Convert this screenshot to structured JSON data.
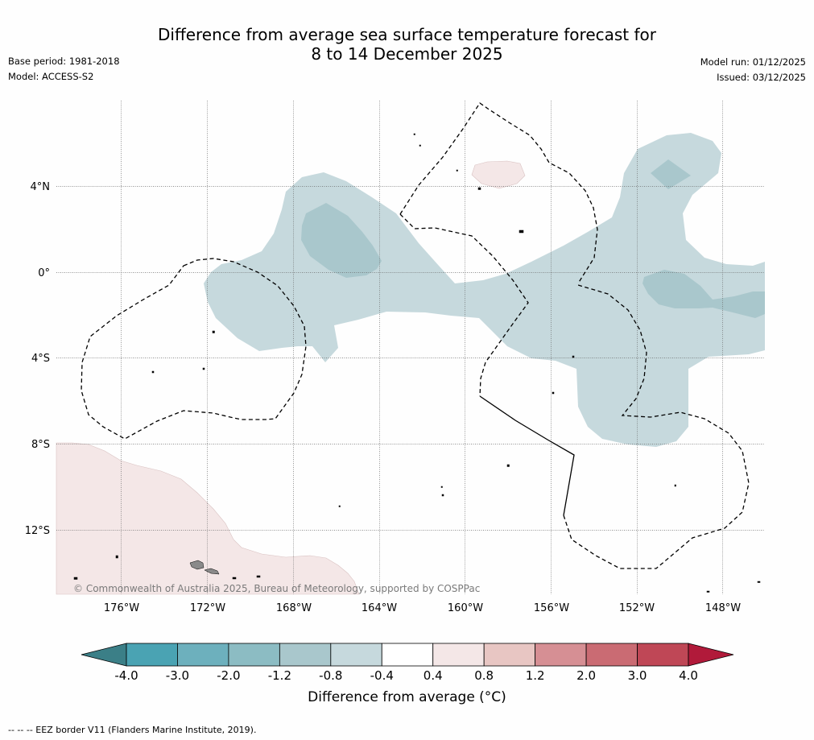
{
  "header": {
    "title_line1": "Difference from average sea surface temperature forecast for",
    "title_line2": "8 to 14 December 2025",
    "base_period": "Base period: 1981-2018",
    "model": "Model: ACCESS-S2",
    "model_run": "Model run: 01/12/2025",
    "issued": "Issued: 03/12/2025"
  },
  "map": {
    "lat_labels": [
      "4°N",
      "0°",
      "4°S",
      "8°S",
      "12°S"
    ],
    "lon_labels": [
      "176°W",
      "172°W",
      "168°W",
      "164°W",
      "160°W",
      "156°W",
      "152°W",
      "148°W"
    ],
    "copyright": "© Commonwealth of Australia 2025, Bureau of Meteorology, supported by COSPPac",
    "anomaly_regions": [
      {
        "name": "central-equatorial-cool-band",
        "range": "-0.8 to -0.4"
      },
      {
        "name": "western-cool-core",
        "range": "-1.2 to -0.8"
      },
      {
        "name": "eastern-cool-core",
        "range": "-1.2 to -0.8"
      },
      {
        "name": "northeast-cool-core",
        "range": "-1.2 to -0.8"
      },
      {
        "name": "north-warm-patch",
        "range": "0.4 to 0.8"
      },
      {
        "name": "southwest-warm-region",
        "range": "0.4 to 0.8"
      }
    ]
  },
  "colorbar": {
    "ticks": [
      "-4.0",
      "-3.0",
      "-2.0",
      "-1.2",
      "-0.8",
      "-0.4",
      "0.4",
      "0.8",
      "1.2",
      "2.0",
      "3.0",
      "4.0"
    ],
    "colors": [
      "#4aa3b3",
      "#6db0bd",
      "#8cbcc3",
      "#a9c7cc",
      "#c6d9dd",
      "#ffffff",
      "#f4e7e7",
      "#e8c6c3",
      "#d68f94",
      "#ca6b73",
      "#bf4756"
    ],
    "extend_low_color": "#3b7f87",
    "extend_high_color": "#b11a3a",
    "label": "Difference from average (°C)"
  },
  "footer": {
    "eez_note": "--  --  -- EEZ border V11 (Flanders Marine Institute, 2019)."
  }
}
